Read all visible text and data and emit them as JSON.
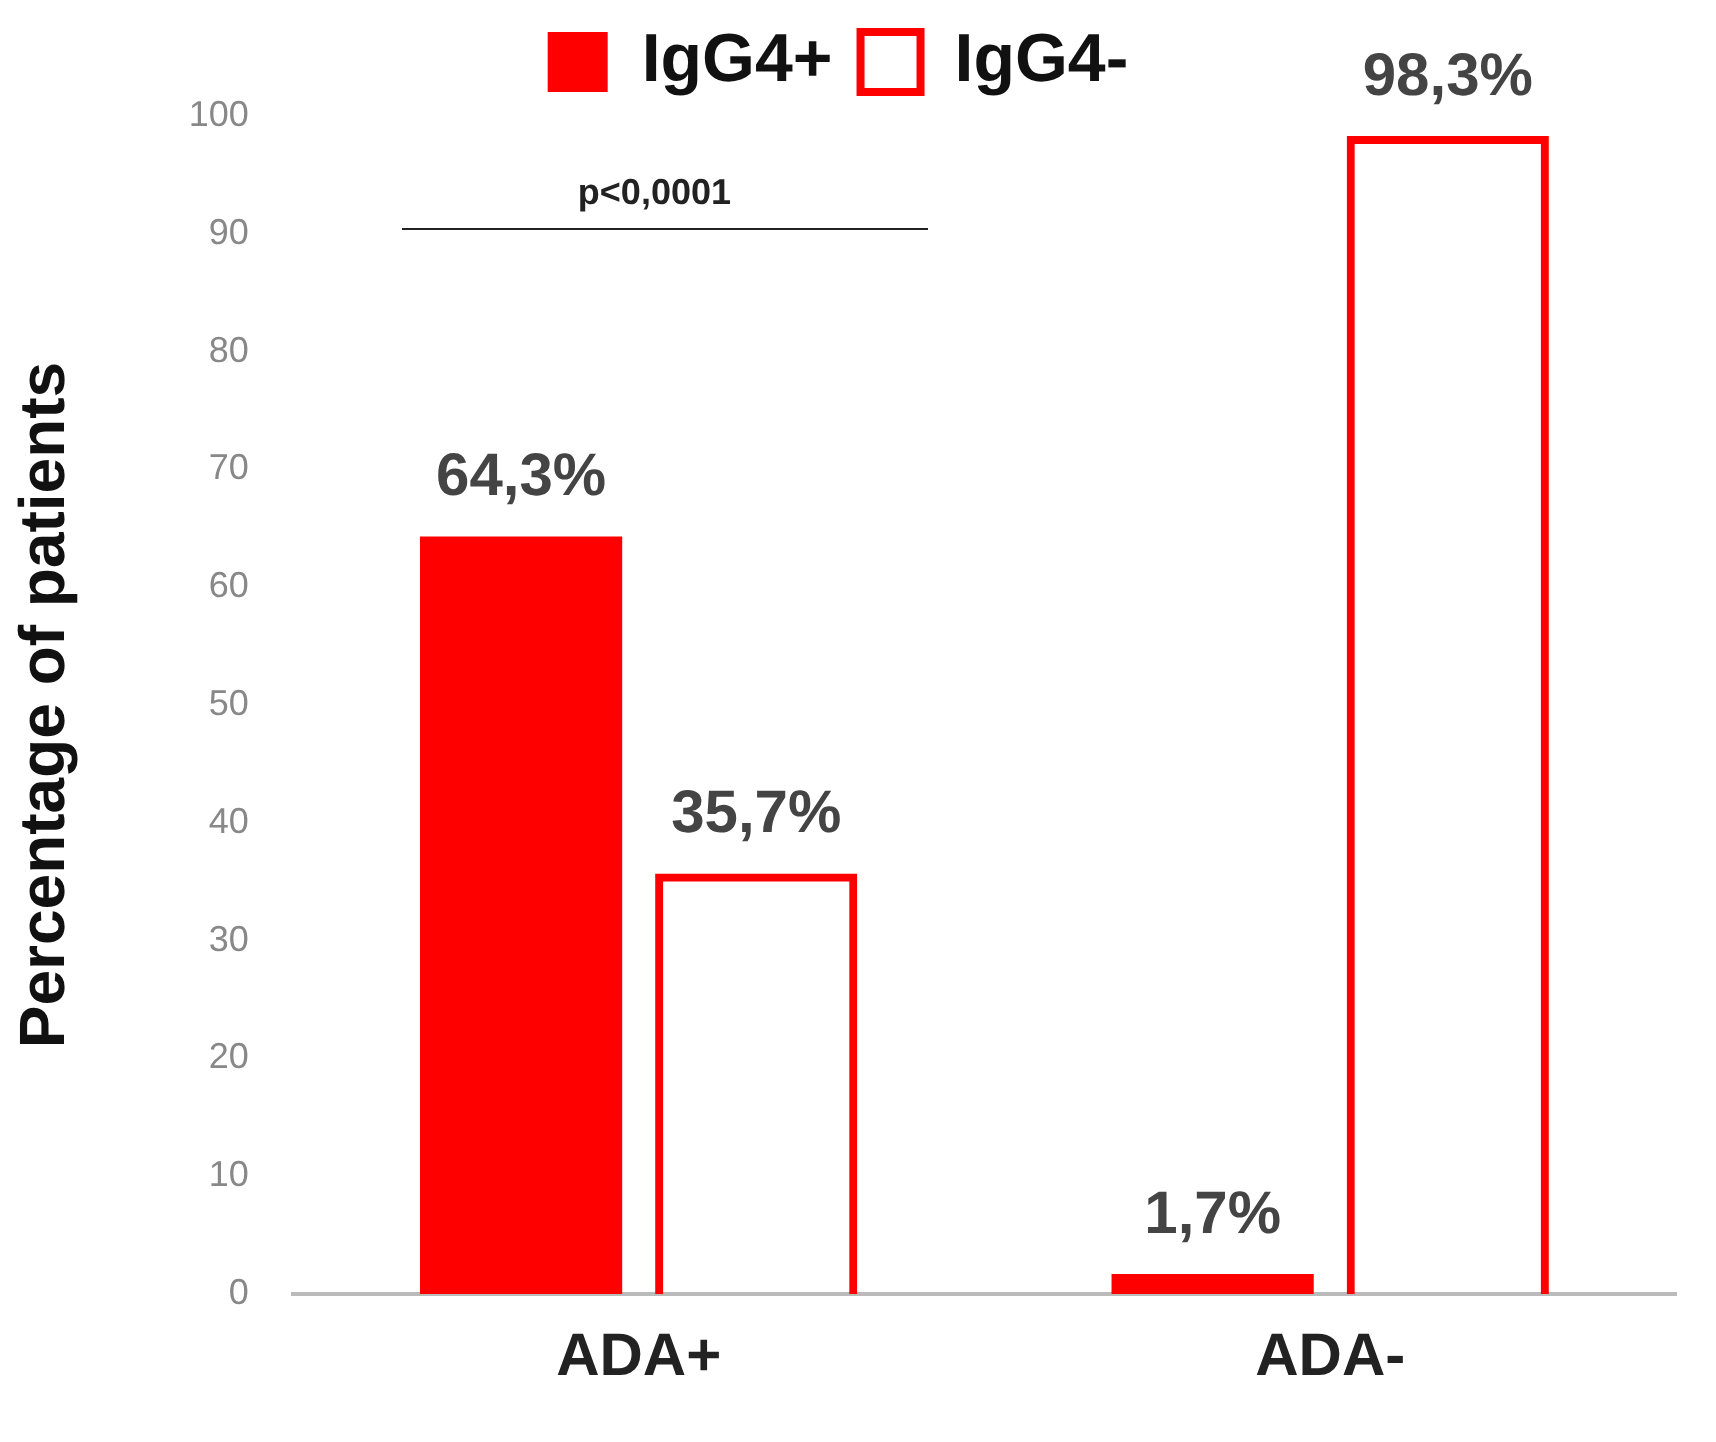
{
  "chart_data": {
    "type": "bar",
    "ylabel": "Percentage of patients",
    "categories": [
      "ADA+",
      "ADA-"
    ],
    "series": [
      {
        "name": "IgG4+",
        "color": "#ff0000",
        "values": [
          64.3,
          1.7
        ],
        "value_labels": [
          "64,3%",
          "1,7%"
        ]
      },
      {
        "name": "IgG4-",
        "color": "#ff0000",
        "values": [
          35.7,
          98.3
        ],
        "value_labels": [
          "35,7%",
          "98,3%"
        ]
      }
    ],
    "ylim": [
      0,
      100
    ],
    "yticks": [
      0,
      10,
      20,
      30,
      40,
      50,
      60,
      70,
      80,
      90,
      100
    ],
    "grid": false,
    "legend": "top",
    "annotations": [
      "p<0,0001"
    ]
  }
}
